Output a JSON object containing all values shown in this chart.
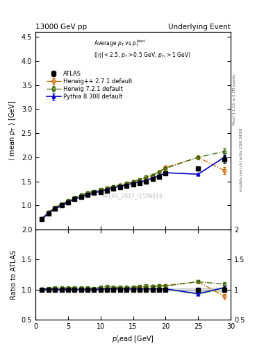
{
  "title_left": "13000 GeV pp",
  "title_right": "Underlying Event",
  "right_label_top": "Rivet 3.1.10, ≥ 2.7M events",
  "right_label_bottom": "mcplots.cern.ch [arXiv:1306.3436]",
  "watermark": "ATLAS_2017_I1509919",
  "xlim": [
    0,
    30
  ],
  "ylim_main": [
    0.5,
    4.6
  ],
  "ylim_ratio": [
    0.5,
    2.0
  ],
  "yticks_main": [
    1.0,
    1.5,
    2.0,
    2.5,
    3.0,
    3.5,
    4.0,
    4.5
  ],
  "yticks_ratio": [
    0.5,
    1.0,
    1.5,
    2.0
  ],
  "atlas_x": [
    1.0,
    2.0,
    3.0,
    4.0,
    5.0,
    6.0,
    7.0,
    8.0,
    9.0,
    10.0,
    11.0,
    12.0,
    13.0,
    14.0,
    15.0,
    16.0,
    17.0,
    18.0,
    19.0,
    20.0,
    25.0,
    29.0
  ],
  "atlas_y": [
    0.72,
    0.84,
    0.93,
    1.0,
    1.07,
    1.13,
    1.18,
    1.22,
    1.27,
    1.28,
    1.31,
    1.35,
    1.38,
    1.41,
    1.44,
    1.47,
    1.5,
    1.55,
    1.6,
    1.67,
    1.77,
    1.95
  ],
  "atlas_yerr": [
    0.02,
    0.02,
    0.02,
    0.02,
    0.02,
    0.02,
    0.02,
    0.02,
    0.02,
    0.02,
    0.02,
    0.02,
    0.02,
    0.02,
    0.02,
    0.02,
    0.02,
    0.02,
    0.02,
    0.03,
    0.04,
    0.07
  ],
  "herwig_x": [
    1.0,
    2.0,
    3.0,
    4.0,
    5.0,
    6.0,
    7.0,
    8.0,
    9.0,
    10.0,
    11.0,
    12.0,
    13.0,
    14.0,
    15.0,
    16.0,
    17.0,
    18.0,
    19.0,
    20.0,
    25.0,
    29.0
  ],
  "herwig_y": [
    0.73,
    0.86,
    0.95,
    1.02,
    1.09,
    1.14,
    1.2,
    1.24,
    1.28,
    1.31,
    1.35,
    1.38,
    1.42,
    1.45,
    1.49,
    1.53,
    1.57,
    1.63,
    1.7,
    1.79,
    2.0,
    1.73
  ],
  "herwig_yerr": [
    0.01,
    0.01,
    0.01,
    0.01,
    0.01,
    0.01,
    0.01,
    0.01,
    0.01,
    0.01,
    0.01,
    0.01,
    0.01,
    0.01,
    0.01,
    0.01,
    0.01,
    0.01,
    0.02,
    0.02,
    0.04,
    0.07
  ],
  "herwig7_x": [
    1.0,
    2.0,
    3.0,
    4.0,
    5.0,
    6.0,
    7.0,
    8.0,
    9.0,
    10.0,
    11.0,
    12.0,
    13.0,
    14.0,
    15.0,
    16.0,
    17.0,
    18.0,
    19.0,
    20.0,
    25.0,
    29.0
  ],
  "herwig7_y": [
    0.73,
    0.86,
    0.96,
    1.03,
    1.1,
    1.16,
    1.22,
    1.26,
    1.3,
    1.33,
    1.37,
    1.4,
    1.43,
    1.46,
    1.5,
    1.54,
    1.59,
    1.63,
    1.7,
    1.77,
    2.0,
    2.12
  ],
  "herwig7_yerr": [
    0.01,
    0.01,
    0.01,
    0.01,
    0.01,
    0.01,
    0.01,
    0.01,
    0.01,
    0.01,
    0.01,
    0.01,
    0.01,
    0.01,
    0.01,
    0.01,
    0.01,
    0.01,
    0.02,
    0.02,
    0.03,
    0.06
  ],
  "pythia_x": [
    1.0,
    2.0,
    3.0,
    4.0,
    5.0,
    6.0,
    7.0,
    8.0,
    9.0,
    10.0,
    11.0,
    12.0,
    13.0,
    14.0,
    15.0,
    16.0,
    17.0,
    18.0,
    19.0,
    20.0,
    25.0,
    29.0
  ],
  "pythia_y": [
    0.72,
    0.84,
    0.93,
    1.0,
    1.07,
    1.13,
    1.18,
    1.22,
    1.26,
    1.3,
    1.33,
    1.37,
    1.4,
    1.43,
    1.46,
    1.49,
    1.52,
    1.57,
    1.62,
    1.68,
    1.65,
    2.0
  ],
  "pythia_yerr": [
    0.01,
    0.01,
    0.01,
    0.01,
    0.01,
    0.01,
    0.01,
    0.01,
    0.01,
    0.01,
    0.01,
    0.01,
    0.01,
    0.01,
    0.01,
    0.01,
    0.01,
    0.01,
    0.01,
    0.01,
    0.02,
    0.04
  ],
  "atlas_color": "#000000",
  "herwig_color": "#cc6600",
  "herwig7_color": "#336600",
  "pythia_color": "#0000cc",
  "ratio_herwig_y": [
    0.99,
    1.0,
    1.01,
    1.01,
    1.01,
    1.01,
    1.01,
    1.01,
    1.01,
    1.02,
    1.02,
    1.02,
    1.03,
    1.03,
    1.03,
    1.04,
    1.04,
    1.05,
    1.06,
    1.07,
    1.13,
    0.89
  ],
  "ratio_herwig7_y": [
    1.01,
    1.02,
    1.03,
    1.03,
    1.03,
    1.03,
    1.03,
    1.03,
    1.02,
    1.04,
    1.05,
    1.04,
    1.04,
    1.04,
    1.04,
    1.05,
    1.06,
    1.05,
    1.06,
    1.06,
    1.13,
    1.09
  ],
  "ratio_pythia_y": [
    1.0,
    1.0,
    1.0,
    1.0,
    1.0,
    1.0,
    1.0,
    1.0,
    0.99,
    1.01,
    1.01,
    1.01,
    1.01,
    1.01,
    1.01,
    1.01,
    1.01,
    1.01,
    1.01,
    1.01,
    0.93,
    1.03
  ]
}
